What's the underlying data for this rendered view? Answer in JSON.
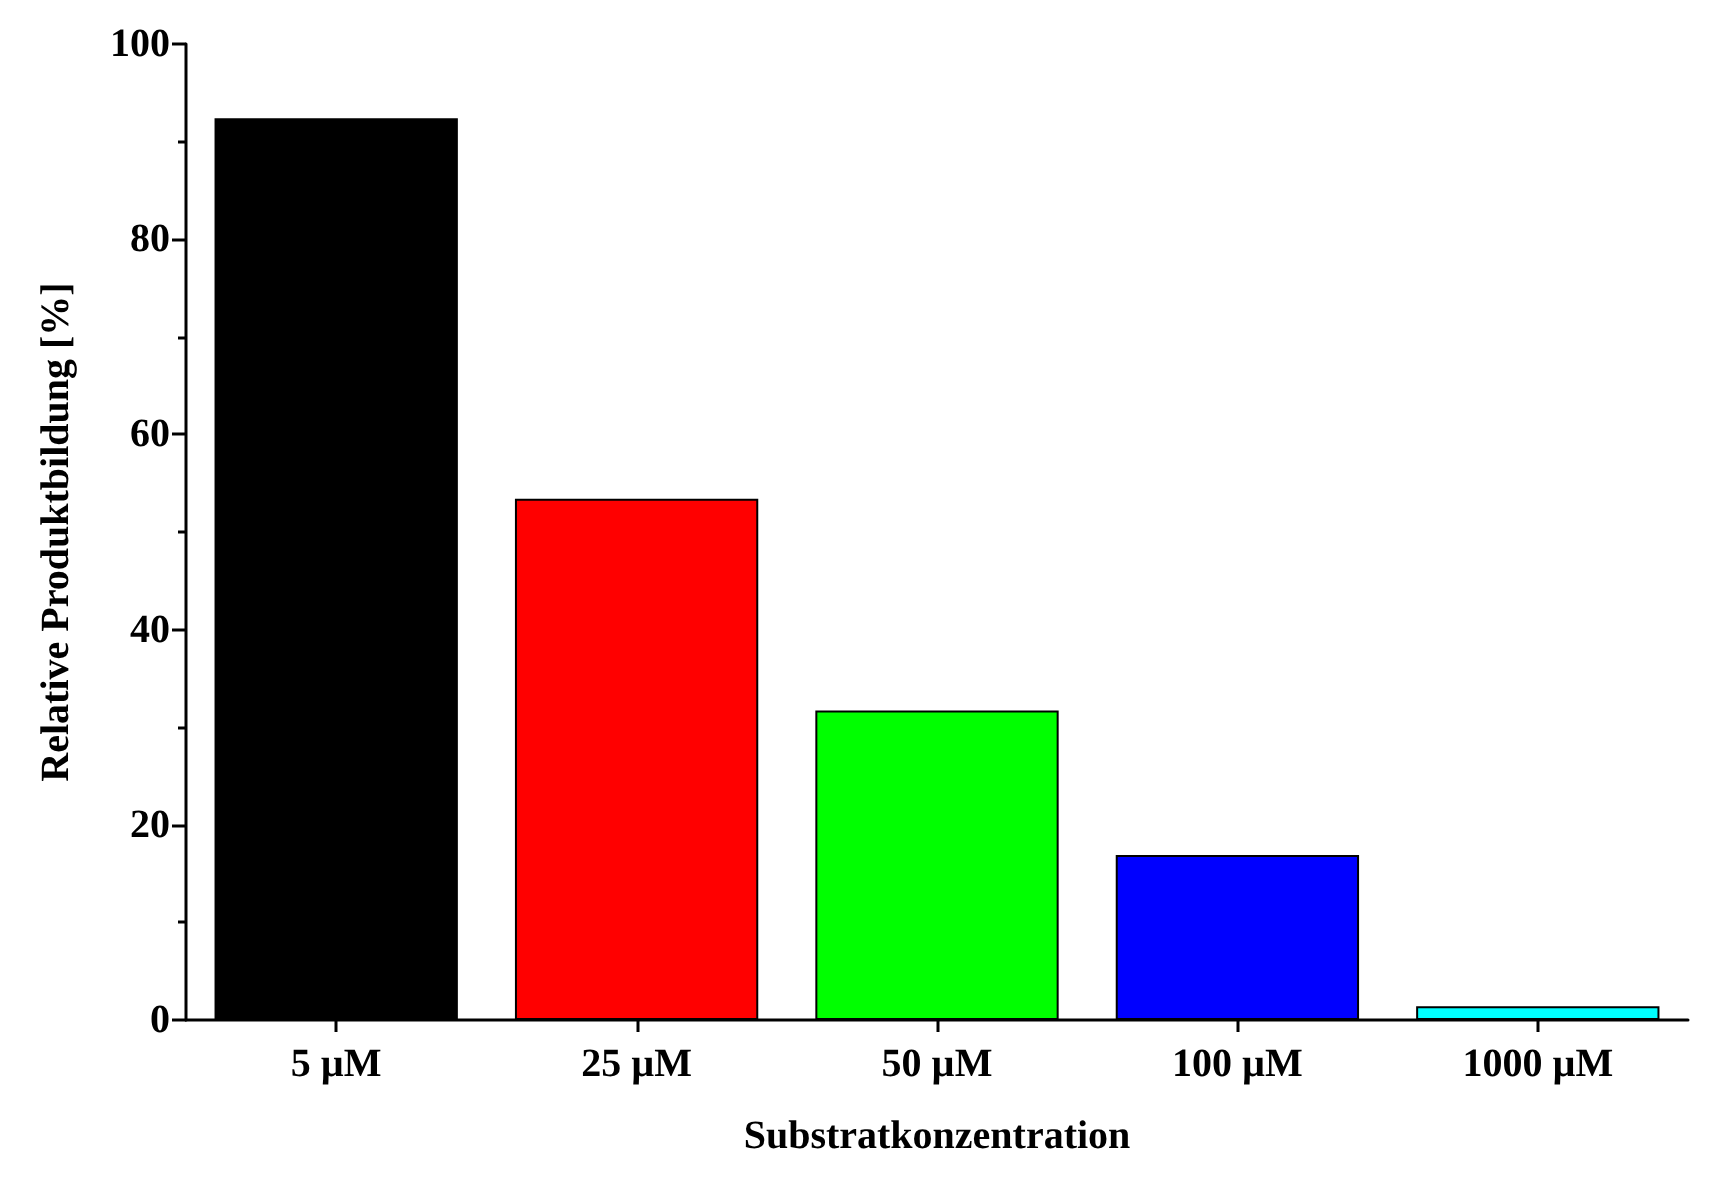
{
  "chart_data": {
    "type": "bar",
    "xlabel": "Substratkonzentration",
    "ylabel": "Relative Produktbildung [%]",
    "categories": [
      "5 µM",
      "25 µM",
      "50 µM",
      "100 µM",
      "1000 µM"
    ],
    "values": [
      92.4,
      53.4,
      31.7,
      16.9,
      1.4
    ],
    "colors": [
      "#000000",
      "#ff0000",
      "#00ff00",
      "#0000ff",
      "#00ffff"
    ],
    "ylim": [
      0,
      100
    ],
    "yticks": [
      0,
      20,
      40,
      60,
      80,
      100
    ],
    "grid": false
  }
}
